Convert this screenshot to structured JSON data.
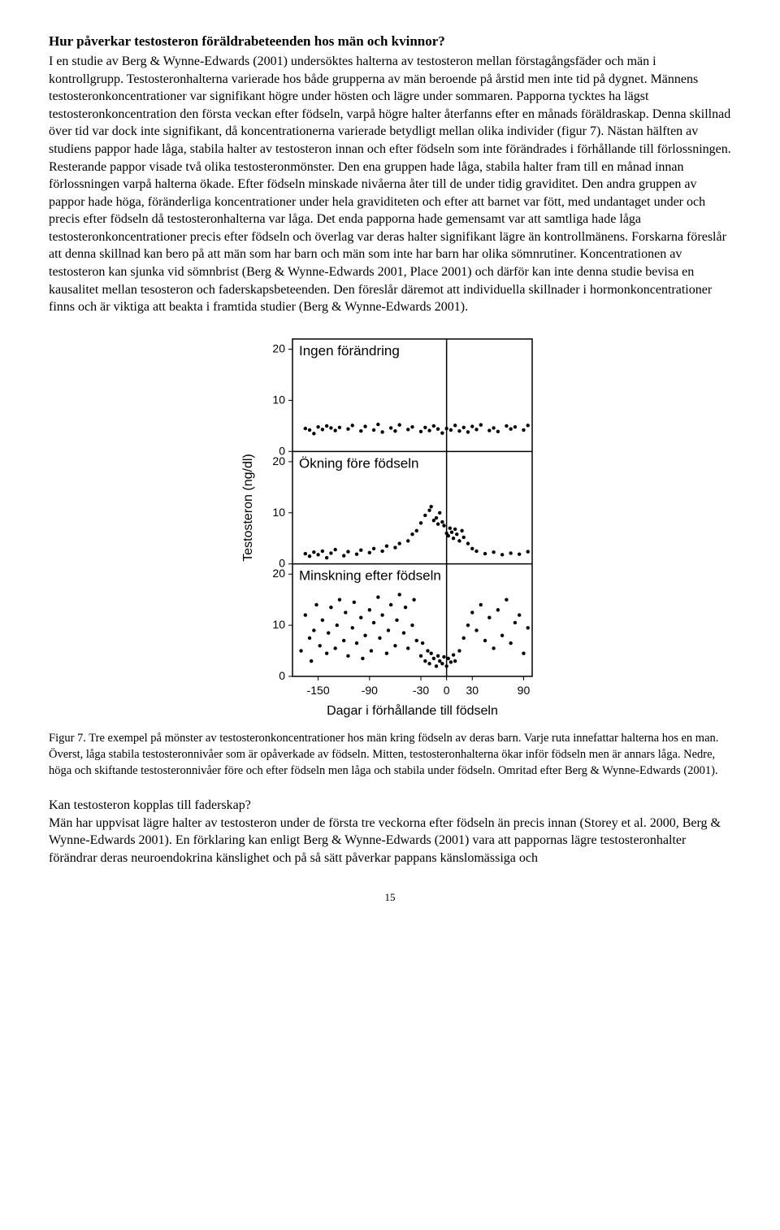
{
  "heading": "Hur påverkar testosteron föräldrabeteenden hos män och kvinnor?",
  "paragraph1": "I en studie av Berg & Wynne-Edwards (2001) undersöktes halterna av testosteron mellan förstagångsfäder och män i kontrollgrupp. Testosteronhalterna varierade hos både grupperna av män beroende på årstid men inte tid på dygnet. Männens testosteronkoncentrationer var signifikant högre under hösten och lägre under sommaren. Papporna tycktes ha lägst testosteronkoncentration den första veckan efter födseln, varpå högre halter återfanns efter en månads föräldraskap. Denna skillnad över tid var dock inte signifikant, då koncentrationerna varierade betydligt mellan olika individer (figur 7). Nästan hälften av studiens pappor hade låga, stabila halter av testosteron innan och efter födseln som inte förändrades i förhållande till förlossningen. Resterande pappor visade två olika testosteronmönster. Den ena gruppen hade låga, stabila halter fram till en månad innan förlossningen varpå halterna ökade. Efter födseln minskade nivåerna åter till de under tidig graviditet. Den andra gruppen av pappor hade höga, föränderliga koncentrationer under hela graviditeten och efter att barnet var fött, med undantaget under och precis efter födseln då testosteronhalterna var låga. Det enda papporna hade gemensamt var att samtliga hade låga testosteronkoncentrationer precis efter födseln och överlag var deras halter signifikant lägre än kontrollmänens. Forskarna föreslår att denna skillnad kan bero på att män som har barn och män som inte har barn har olika sömnrutiner. Koncentrationen av testosteron kan sjunka vid sömnbrist (Berg & Wynne-Edwards 2001, Place 2001) och därför kan inte denna studie bevisa en kausalitet mellan tesosteron och faderskapsbeteenden. Den föreslår däremot att individuella skillnader i hormonkoncentrationer finns och är viktiga att beakta i framtida studier (Berg & Wynne-Edwards 2001).",
  "figure": {
    "ylabel": "Testosteron (ng/dl)",
    "xlabel": "Dagar i förhållande till födseln",
    "xticks": [
      -150,
      -90,
      -30,
      0,
      30,
      90
    ],
    "panels": [
      {
        "title": "Ingen förändring",
        "yticks": [
          0,
          10,
          20
        ],
        "points": [
          [
            -165,
            4.5
          ],
          [
            -160,
            4.2
          ],
          [
            -155,
            3.5
          ],
          [
            -150,
            4.8
          ],
          [
            -145,
            4.3
          ],
          [
            -140,
            5.0
          ],
          [
            -135,
            4.6
          ],
          [
            -130,
            4.1
          ],
          [
            -125,
            4.7
          ],
          [
            -115,
            4.4
          ],
          [
            -110,
            5.1
          ],
          [
            -100,
            4.0
          ],
          [
            -95,
            4.9
          ],
          [
            -85,
            4.2
          ],
          [
            -80,
            5.3
          ],
          [
            -75,
            3.8
          ],
          [
            -65,
            4.6
          ],
          [
            -60,
            4.0
          ],
          [
            -55,
            5.2
          ],
          [
            -45,
            4.3
          ],
          [
            -40,
            4.8
          ],
          [
            -30,
            3.9
          ],
          [
            -25,
            4.7
          ],
          [
            -20,
            4.1
          ],
          [
            -15,
            5.0
          ],
          [
            -10,
            4.4
          ],
          [
            -5,
            3.6
          ],
          [
            0,
            4.5
          ],
          [
            5,
            4.2
          ],
          [
            10,
            5.1
          ],
          [
            15,
            4.0
          ],
          [
            20,
            4.7
          ],
          [
            25,
            3.8
          ],
          [
            30,
            4.9
          ],
          [
            35,
            4.3
          ],
          [
            40,
            5.2
          ],
          [
            50,
            4.1
          ],
          [
            55,
            4.6
          ],
          [
            60,
            3.9
          ],
          [
            70,
            5.0
          ],
          [
            75,
            4.4
          ],
          [
            80,
            4.8
          ],
          [
            90,
            4.2
          ],
          [
            95,
            5.1
          ]
        ]
      },
      {
        "title": "Ökning före födseln",
        "yticks": [
          0,
          10,
          20
        ],
        "points": [
          [
            -165,
            2.0
          ],
          [
            -160,
            1.5
          ],
          [
            -155,
            2.3
          ],
          [
            -150,
            1.8
          ],
          [
            -145,
            2.5
          ],
          [
            -140,
            1.2
          ],
          [
            -135,
            2.1
          ],
          [
            -130,
            2.8
          ],
          [
            -120,
            1.6
          ],
          [
            -115,
            2.4
          ],
          [
            -105,
            1.9
          ],
          [
            -100,
            2.7
          ],
          [
            -90,
            2.2
          ],
          [
            -85,
            3.0
          ],
          [
            -75,
            2.5
          ],
          [
            -70,
            3.5
          ],
          [
            -60,
            3.2
          ],
          [
            -55,
            4.0
          ],
          [
            -45,
            4.5
          ],
          [
            -40,
            5.8
          ],
          [
            -35,
            6.5
          ],
          [
            -30,
            8.0
          ],
          [
            -25,
            9.5
          ],
          [
            -20,
            10.5
          ],
          [
            -18,
            11.2
          ],
          [
            -15,
            8.5
          ],
          [
            -12,
            9.0
          ],
          [
            -10,
            7.8
          ],
          [
            -8,
            10.0
          ],
          [
            -5,
            8.2
          ],
          [
            -3,
            7.5
          ],
          [
            0,
            6.0
          ],
          [
            2,
            5.5
          ],
          [
            4,
            7.0
          ],
          [
            6,
            6.2
          ],
          [
            8,
            5.0
          ],
          [
            10,
            6.8
          ],
          [
            12,
            5.8
          ],
          [
            15,
            4.5
          ],
          [
            18,
            6.5
          ],
          [
            20,
            5.2
          ],
          [
            25,
            4.0
          ],
          [
            30,
            3.0
          ],
          [
            35,
            2.5
          ],
          [
            45,
            2.0
          ],
          [
            55,
            2.3
          ],
          [
            65,
            1.8
          ],
          [
            75,
            2.1
          ],
          [
            85,
            1.9
          ],
          [
            95,
            2.4
          ]
        ]
      },
      {
        "title": "Minskning efter födseln",
        "yticks": [
          0,
          10,
          20
        ],
        "points": [
          [
            -170,
            5.0
          ],
          [
            -165,
            12.0
          ],
          [
            -160,
            7.5
          ],
          [
            -158,
            3.0
          ],
          [
            -155,
            9.0
          ],
          [
            -152,
            14.0
          ],
          [
            -148,
            6.0
          ],
          [
            -145,
            11.0
          ],
          [
            -140,
            4.5
          ],
          [
            -138,
            8.5
          ],
          [
            -135,
            13.5
          ],
          [
            -130,
            5.5
          ],
          [
            -128,
            10.0
          ],
          [
            -125,
            15.0
          ],
          [
            -120,
            7.0
          ],
          [
            -118,
            12.5
          ],
          [
            -115,
            4.0
          ],
          [
            -110,
            9.5
          ],
          [
            -108,
            14.5
          ],
          [
            -105,
            6.5
          ],
          [
            -100,
            11.5
          ],
          [
            -98,
            3.5
          ],
          [
            -95,
            8.0
          ],
          [
            -90,
            13.0
          ],
          [
            -88,
            5.0
          ],
          [
            -85,
            10.5
          ],
          [
            -80,
            15.5
          ],
          [
            -78,
            7.5
          ],
          [
            -75,
            12.0
          ],
          [
            -70,
            4.5
          ],
          [
            -68,
            9.0
          ],
          [
            -65,
            14.0
          ],
          [
            -60,
            6.0
          ],
          [
            -58,
            11.0
          ],
          [
            -55,
            16.0
          ],
          [
            -50,
            8.5
          ],
          [
            -48,
            13.5
          ],
          [
            -45,
            5.5
          ],
          [
            -40,
            10.0
          ],
          [
            -38,
            15.0
          ],
          [
            -35,
            7.0
          ],
          [
            -30,
            4.0
          ],
          [
            -28,
            6.5
          ],
          [
            -25,
            3.0
          ],
          [
            -22,
            5.0
          ],
          [
            -20,
            2.5
          ],
          [
            -18,
            4.5
          ],
          [
            -15,
            3.5
          ],
          [
            -12,
            2.0
          ],
          [
            -10,
            4.0
          ],
          [
            -8,
            3.0
          ],
          [
            -5,
            2.5
          ],
          [
            -3,
            3.8
          ],
          [
            0,
            2.0
          ],
          [
            2,
            3.5
          ],
          [
            5,
            2.8
          ],
          [
            8,
            4.2
          ],
          [
            10,
            3.0
          ],
          [
            15,
            5.0
          ],
          [
            20,
            7.5
          ],
          [
            25,
            10.0
          ],
          [
            30,
            12.5
          ],
          [
            35,
            9.0
          ],
          [
            40,
            14.0
          ],
          [
            45,
            7.0
          ],
          [
            50,
            11.5
          ],
          [
            55,
            5.5
          ],
          [
            60,
            13.0
          ],
          [
            65,
            8.0
          ],
          [
            70,
            15.0
          ],
          [
            75,
            6.5
          ],
          [
            80,
            10.5
          ],
          [
            85,
            12.0
          ],
          [
            90,
            4.5
          ],
          [
            95,
            9.5
          ]
        ]
      }
    ],
    "style": {
      "point_color": "#000000",
      "axis_color": "#000000",
      "grid_color": "#000000",
      "background": "#ffffff",
      "label_fontsize": 16,
      "tick_fontsize": 14,
      "panel_title_fontsize": 17,
      "xlim": [
        -180,
        100
      ],
      "panel_ylim": [
        0,
        22
      ],
      "point_radius": 2.2
    }
  },
  "caption": "Figur 7. Tre exempel på mönster av testosteronkoncentrationer hos män kring födseln av deras barn. Varje ruta innefattar halterna hos en man. Överst, låga stabila testosteronnivåer som är opåverkade av födseln. Mitten, testosteronhalterna ökar inför födseln men är annars låga. Nedre, höga och skiftande testosteronnivåer före och efter födseln men låga och stabila under födseln. Omritad efter Berg & Wynne-Edwards (2001).",
  "subheading": "Kan testosteron kopplas till faderskap?",
  "paragraph2": "Män har uppvisat lägre halter av testosteron under de första tre veckorna efter födseln än precis innan (Storey et al. 2000, Berg & Wynne-Edwards 2001). En förklaring kan enligt Berg & Wynne-Edwards (2001) vara att pappornas lägre testosteronhalter förändrar deras neuroendokrina känslighet och på så sätt påverkar pappans känslomässiga och",
  "pageNumber": "15"
}
